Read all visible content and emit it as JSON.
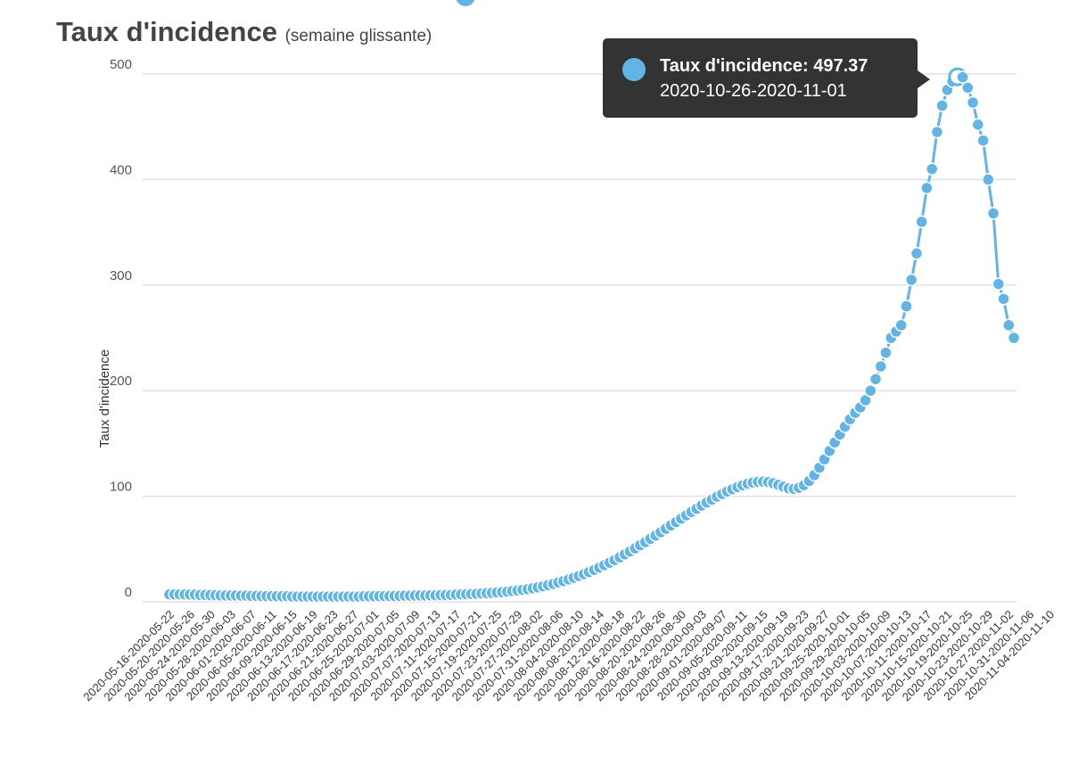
{
  "title": "Taux d'incidence",
  "subtitle": "(semaine glissante)",
  "tooltip": {
    "series_label": "Taux d'incidence: ",
    "value": "497.37",
    "range": "2020-10-26-2020-11-01"
  },
  "colors": {
    "series": "#62b4e4",
    "grid": "#e0e0e0",
    "tooltip_bg": "#333333",
    "text": "#444444"
  },
  "chart_data": {
    "type": "line",
    "title": "Taux d'incidence",
    "subtitle": "(semaine glissante)",
    "xlabel": "",
    "ylabel": "Taux d'incidence",
    "ylim": [
      0,
      520
    ],
    "yticks": [
      0,
      100,
      200,
      300,
      400,
      500
    ],
    "grid": true,
    "start_date": "2020-05-16",
    "window_days": 7,
    "x_tick_labels": [
      "2020-05-16-2020-05-22",
      "2020-05-20-2020-05-26",
      "2020-05-24-2020-05-30",
      "2020-05-28-2020-06-03",
      "2020-06-01-2020-06-07",
      "2020-06-05-2020-06-11",
      "2020-06-09-2020-06-15",
      "2020-06-13-2020-06-19",
      "2020-06-17-2020-06-23",
      "2020-06-21-2020-06-27",
      "2020-06-25-2020-07-01",
      "2020-06-29-2020-07-05",
      "2020-07-03-2020-07-09",
      "2020-07-07-2020-07-13",
      "2020-07-11-2020-07-17",
      "2020-07-15-2020-07-21",
      "2020-07-19-2020-07-25",
      "2020-07-23-2020-07-29",
      "2020-07-27-2020-08-02",
      "2020-07-31-2020-08-06",
      "2020-08-04-2020-08-10",
      "2020-08-08-2020-08-14",
      "2020-08-12-2020-08-18",
      "2020-08-16-2020-08-22",
      "2020-08-20-2020-08-26",
      "2020-08-24-2020-08-30",
      "2020-08-28-2020-09-03",
      "2020-09-01-2020-09-07",
      "2020-09-05-2020-09-11",
      "2020-09-09-2020-09-15",
      "2020-09-13-2020-09-19",
      "2020-09-17-2020-09-23",
      "2020-09-21-2020-09-27",
      "2020-09-25-2020-10-01",
      "2020-09-29-2020-10-05",
      "2020-10-03-2020-10-09",
      "2020-10-07-2020-10-13",
      "2020-10-11-2020-10-17",
      "2020-10-15-2020-10-21",
      "2020-10-19-2020-10-25",
      "2020-10-23-2020-10-29",
      "2020-10-27-2020-11-02",
      "2020-10-31-2020-11-06",
      "2020-11-04-2020-11-10"
    ],
    "series": [
      {
        "name": "Taux d'incidence",
        "values": [
          7,
          7,
          7,
          7,
          6.8,
          6.8,
          6.5,
          6.5,
          6.3,
          6.3,
          6,
          6,
          6,
          6,
          5.8,
          5.8,
          5.6,
          5.6,
          5.4,
          5.4,
          5.4,
          5.2,
          5.2,
          5.2,
          5,
          5,
          5,
          5,
          5,
          5,
          5,
          5,
          5,
          5,
          5,
          5,
          5,
          5,
          5.2,
          5.2,
          5.2,
          5.4,
          5.4,
          5.4,
          5.6,
          5.6,
          5.8,
          5.8,
          6,
          6,
          6,
          6.2,
          6.2,
          6.4,
          6.4,
          6.6,
          6.8,
          7,
          7.2,
          7.4,
          7.6,
          7.9,
          8.2,
          8.5,
          8.9,
          9.3,
          9.7,
          10.2,
          10.7,
          11.3,
          12,
          12.8,
          13.7,
          14.7,
          15.8,
          17,
          18.3,
          19.7,
          21.2,
          22.8,
          24.5,
          26.3,
          28.2,
          30.2,
          32.4,
          34.7,
          37.1,
          39.6,
          42.2,
          44.9,
          47.7,
          50.6,
          53.6,
          56.6,
          59.7,
          62.8,
          66,
          69.2,
          72.4,
          75.6,
          78.8,
          82,
          85.1,
          88.2,
          91.2,
          94.1,
          96.9,
          99.6,
          102.1,
          104.5,
          106.7,
          108.7,
          110.4,
          111.9,
          113,
          113.6,
          113.8,
          113.4,
          112.3,
          110.7,
          109,
          107.5,
          107,
          108,
          110.5,
          114.5,
          120,
          127,
          135,
          143,
          151,
          158.5,
          166,
          173,
          179,
          184,
          191,
          200,
          211,
          223,
          236,
          250,
          256,
          262,
          280,
          305,
          330,
          360,
          392,
          410,
          445,
          470,
          485,
          493,
          497.37,
          497,
          487,
          473,
          452,
          437,
          400,
          368,
          301,
          287,
          262,
          250
        ]
      }
    ],
    "highlighted_point": {
      "label": "2020-10-26-2020-11-01",
      "value": 497.37
    }
  }
}
